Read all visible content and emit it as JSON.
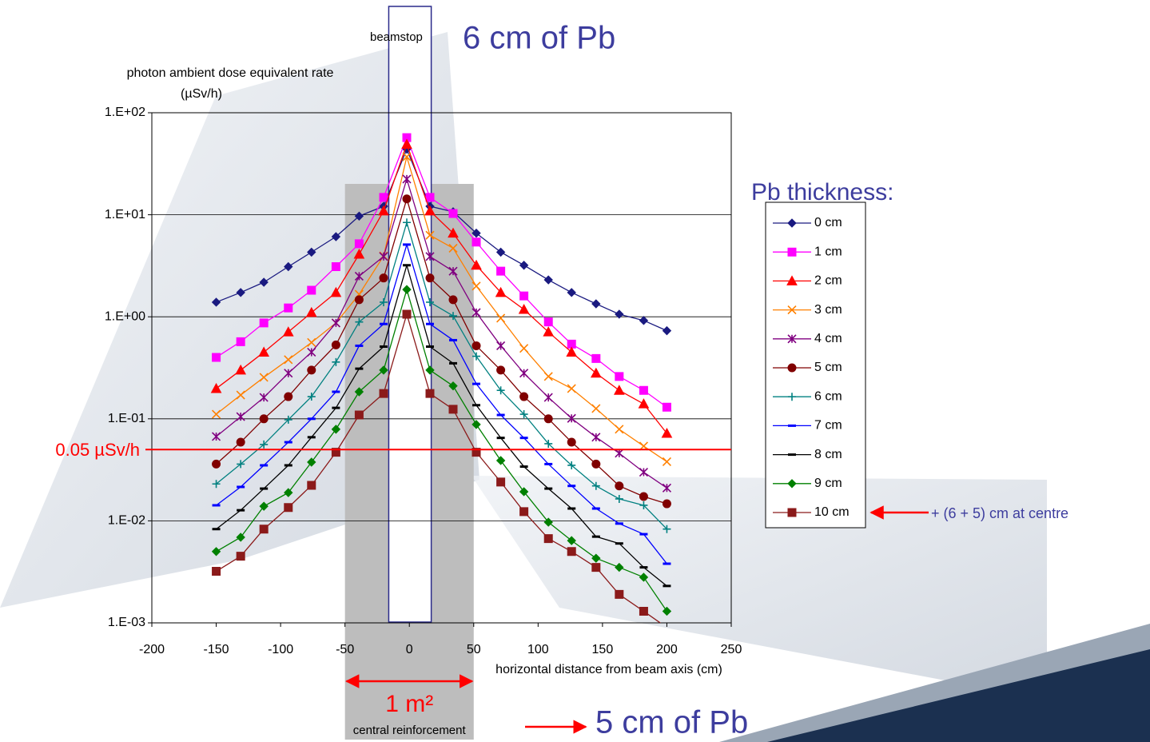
{
  "chart_data": {
    "type": "line",
    "log_y": true,
    "grid": true,
    "legend_position": "right",
    "legend_title": "Pb thickness:",
    "x_label": "horizontal distance from beam axis (cm)",
    "y_label": [
      "photon ambient dose equivalent rate",
      "(µSv/h)"
    ],
    "xlim": [
      -200,
      250
    ],
    "xticks": [
      -200,
      -150,
      -100,
      -50,
      0,
      50,
      100,
      150,
      200,
      250
    ],
    "ylim": [
      0.001,
      100
    ],
    "yticks": [
      {
        "value": 0.001,
        "label": "1.E-03"
      },
      {
        "value": 0.01,
        "label": "1.E-02"
      },
      {
        "value": 0.1,
        "label": "1.E-01"
      },
      {
        "value": 1,
        "label": "1.E+00"
      },
      {
        "value": 10,
        "label": "1.E+01"
      },
      {
        "value": 100,
        "label": "1.E+02"
      }
    ],
    "threshold": {
      "value": 0.05,
      "label": "0.05 µSv/h",
      "color": "#ff0000"
    },
    "beamstop": {
      "x": [
        -16,
        17
      ],
      "label": "beamstop",
      "thickness_label": "6 cm of Pb"
    },
    "reinforcement": {
      "x": [
        -50,
        50
      ],
      "area_label": "1 m²",
      "label": "central reinforcement",
      "thickness_label": "5 cm of Pb"
    },
    "centre_note": "+ (6 + 5) cm at centre",
    "x": [
      -150,
      -131,
      -113,
      -94,
      -76,
      -57,
      -39,
      -20,
      -2,
      16,
      34,
      52,
      71,
      89,
      108,
      126,
      145,
      163,
      182,
      200
    ],
    "series": [
      {
        "name": "0 cm",
        "color": "#1a1a80",
        "marker": "diamond",
        "values": [
          1.39,
          1.73,
          2.18,
          3.1,
          4.3,
          6.1,
          9.7,
          12.1,
          44,
          12.1,
          10.7,
          6.6,
          4.3,
          3.2,
          2.3,
          1.73,
          1.34,
          1.06,
          0.92,
          0.73
        ]
      },
      {
        "name": "1 cm",
        "color": "#ff00ff",
        "marker": "square",
        "values": [
          0.4,
          0.57,
          0.87,
          1.22,
          1.82,
          3.1,
          5.2,
          14.8,
          57,
          14.8,
          10.3,
          5.4,
          2.8,
          1.6,
          0.89,
          0.54,
          0.39,
          0.26,
          0.19,
          0.13
        ]
      },
      {
        "name": "2 cm",
        "color": "#ff0000",
        "marker": "triangle",
        "values": [
          0.198,
          0.3,
          0.45,
          0.71,
          1.1,
          1.73,
          4.1,
          10.9,
          49,
          10.9,
          6.6,
          3.2,
          1.73,
          1.18,
          0.71,
          0.45,
          0.28,
          0.19,
          0.14,
          0.072
        ]
      },
      {
        "name": "3 cm",
        "color": "#ff8000",
        "marker": "x",
        "values": [
          0.111,
          0.171,
          0.255,
          0.38,
          0.56,
          0.87,
          1.66,
          3.95,
          37,
          6.3,
          4.7,
          2.0,
          0.97,
          0.49,
          0.26,
          0.198,
          0.126,
          0.079,
          0.054,
          0.038
        ]
      },
      {
        "name": "4 cm",
        "color": "#800080",
        "marker": "star",
        "values": [
          0.067,
          0.105,
          0.162,
          0.28,
          0.45,
          0.87,
          2.5,
          3.9,
          22.4,
          3.9,
          2.8,
          1.1,
          0.52,
          0.28,
          0.162,
          0.101,
          0.066,
          0.046,
          0.03,
          0.021
        ]
      },
      {
        "name": "5 cm",
        "color": "#800000",
        "marker": "circle",
        "values": [
          0.036,
          0.059,
          0.1,
          0.165,
          0.3,
          0.53,
          1.47,
          2.4,
          14.3,
          2.4,
          1.47,
          0.52,
          0.3,
          0.165,
          0.1,
          0.059,
          0.036,
          0.022,
          0.0173,
          0.0147
        ]
      },
      {
        "name": "6 cm",
        "color": "#008080",
        "marker": "plus",
        "values": [
          0.023,
          0.036,
          0.056,
          0.098,
          0.165,
          0.36,
          0.89,
          1.39,
          8.4,
          1.39,
          1.02,
          0.41,
          0.19,
          0.111,
          0.057,
          0.035,
          0.022,
          0.0164,
          0.0142,
          0.0083
        ]
      },
      {
        "name": "7 cm",
        "color": "#0000ff",
        "marker": "dash",
        "values": [
          0.0142,
          0.0215,
          0.035,
          0.059,
          0.1,
          0.184,
          0.52,
          0.85,
          5.1,
          0.85,
          0.59,
          0.22,
          0.109,
          0.065,
          0.036,
          0.022,
          0.0132,
          0.0094,
          0.0074,
          0.0038
        ]
      },
      {
        "name": "8 cm",
        "color": "#000000",
        "marker": "dash",
        "values": [
          0.0083,
          0.0127,
          0.0207,
          0.035,
          0.066,
          0.128,
          0.31,
          0.51,
          3.2,
          0.51,
          0.35,
          0.136,
          0.065,
          0.034,
          0.0207,
          0.0132,
          0.007,
          0.006,
          0.0035,
          0.0023
        ]
      },
      {
        "name": "9 cm",
        "color": "#008000",
        "marker": "diamond",
        "values": [
          0.005,
          0.0069,
          0.0139,
          0.0189,
          0.0376,
          0.079,
          0.184,
          0.3,
          1.85,
          0.3,
          0.21,
          0.088,
          0.039,
          0.0193,
          0.0097,
          0.0064,
          0.0043,
          0.0035,
          0.0028,
          0.0013
        ]
      },
      {
        "name": "10 cm",
        "color": "#8b1a1a",
        "marker": "square",
        "values": [
          0.0032,
          0.0045,
          0.0083,
          0.0135,
          0.0223,
          0.047,
          0.109,
          0.177,
          1.06,
          0.177,
          0.124,
          0.047,
          0.024,
          0.0123,
          0.0067,
          0.005,
          0.0035,
          0.0019,
          0.0013,
          0.0009
        ]
      }
    ]
  }
}
